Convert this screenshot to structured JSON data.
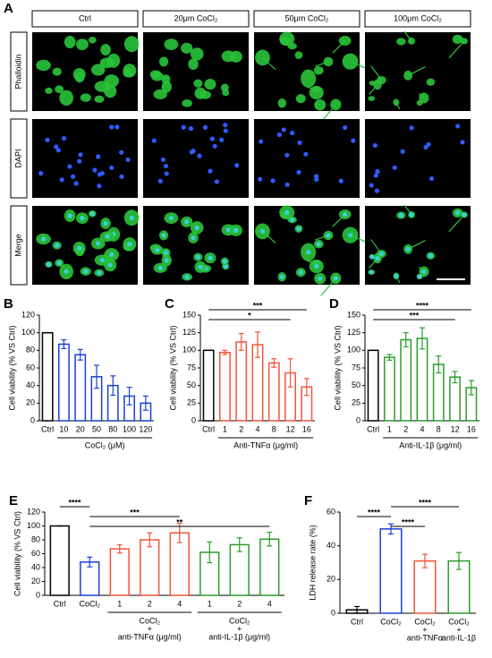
{
  "panel_a": {
    "label": "A",
    "columns": [
      "Ctrl",
      "20μm CoCl₂",
      "50μm CoCl₂",
      "100μm CoCl₂"
    ],
    "rows": [
      "Phalloidin",
      "DAPI",
      "Merge"
    ]
  },
  "chart_data": [
    {
      "type": "bar",
      "panel": "B",
      "ylabel": "Cell viability (% VS Ctrl)",
      "xlabel": "CoCl₂ (μM)",
      "categories": [
        "Ctrl",
        "10",
        "20",
        "50",
        "80",
        "100",
        "120"
      ],
      "values": [
        100,
        87,
        75,
        50,
        40,
        28,
        20
      ],
      "errors": [
        0,
        5,
        6,
        13,
        11,
        10,
        8
      ],
      "colors": [
        "#000000",
        "#1a3fd8",
        "#1a3fd8",
        "#1a3fd8",
        "#1a3fd8",
        "#1a3fd8",
        "#1a3fd8"
      ],
      "ylim": [
        0,
        120
      ],
      "yticks": [
        0,
        20,
        40,
        60,
        80,
        100,
        120
      ]
    },
    {
      "type": "bar",
      "panel": "C",
      "ylabel": "Cell viability (% VS Ctrl)",
      "xlabel": "Anti-TNFα (μg/ml)",
      "categories": [
        "Ctrl",
        "1",
        "2",
        "4",
        "8",
        "12",
        "16"
      ],
      "values": [
        100,
        97,
        112,
        108,
        82,
        68,
        48
      ],
      "errors": [
        0,
        3,
        12,
        18,
        6,
        20,
        12
      ],
      "colors": [
        "#000000",
        "#f0553a",
        "#f0553a",
        "#f0553a",
        "#f0553a",
        "#f0553a",
        "#f0553a"
      ],
      "ylim": [
        0,
        150
      ],
      "yticks": [
        0,
        25,
        50,
        75,
        100,
        125,
        150
      ],
      "significance": [
        {
          "label": "***",
          "from": 0,
          "to": 6
        },
        {
          "label": "*",
          "from": 0,
          "to": 5
        }
      ]
    },
    {
      "type": "bar",
      "panel": "D",
      "ylabel": "Cell viability (% VS Ctrl)",
      "xlabel": "Anti-IL-1β (μg/ml)",
      "categories": [
        "Ctrl",
        "1",
        "2",
        "4",
        "8",
        "12",
        "16"
      ],
      "values": [
        100,
        90,
        115,
        117,
        80,
        62,
        47
      ],
      "errors": [
        0,
        4,
        10,
        15,
        12,
        8,
        10
      ],
      "colors": [
        "#000000",
        "#2a9d2a",
        "#2a9d2a",
        "#2a9d2a",
        "#2a9d2a",
        "#2a9d2a",
        "#2a9d2a"
      ],
      "ylim": [
        0,
        150
      ],
      "yticks": [
        0,
        25,
        50,
        75,
        100,
        125,
        150
      ],
      "significance": [
        {
          "label": "****",
          "from": 0,
          "to": 6
        },
        {
          "label": "***",
          "from": 0,
          "to": 5
        }
      ]
    },
    {
      "type": "bar",
      "panel": "E",
      "ylabel": "Cell viability (% VS Ctrl)",
      "categories": [
        "Ctrl",
        "CoCl₂",
        "1",
        "2",
        "4",
        "1",
        "2",
        "4"
      ],
      "values": [
        100,
        48,
        67,
        80,
        90,
        62,
        73,
        81
      ],
      "errors": [
        0,
        7,
        6,
        10,
        14,
        15,
        10,
        10
      ],
      "colors": [
        "#000000",
        "#1a3fd8",
        "#f0553a",
        "#f0553a",
        "#f0553a",
        "#2a9d2a",
        "#2a9d2a",
        "#2a9d2a"
      ],
      "ylim": [
        0,
        120
      ],
      "yticks": [
        0,
        20,
        40,
        60,
        80,
        100,
        120
      ],
      "groups": [
        {
          "label_lines": [
            "CoCl₂",
            "+",
            "anti-TNFα (μg/ml)"
          ],
          "from": 2,
          "to": 4
        },
        {
          "label_lines": [
            "CoCl₂",
            "+",
            "anti-IL-1β (μg/ml)"
          ],
          "from": 5,
          "to": 7
        }
      ],
      "significance": [
        {
          "label": "****",
          "from": 0,
          "to": 1
        },
        {
          "label": "***",
          "from": 1,
          "to": 4
        },
        {
          "label": "**",
          "from": 1,
          "to": 7
        }
      ]
    },
    {
      "type": "bar",
      "panel": "F",
      "ylabel": "LDH release rate (%)",
      "categories": [
        [
          "Ctrl"
        ],
        [
          "CoCl₂"
        ],
        [
          "CoCl₂",
          "+",
          "anti-TNFα"
        ],
        [
          "CoCl₂",
          "+",
          "anti-IL-1β"
        ]
      ],
      "values": [
        2,
        50,
        31,
        31
      ],
      "errors": [
        2,
        3,
        4,
        5
      ],
      "colors": [
        "#000000",
        "#1a3fd8",
        "#f0553a",
        "#2a9d2a"
      ],
      "ylim": [
        0,
        60
      ],
      "yticks": [
        0,
        20,
        40,
        60
      ],
      "significance": [
        {
          "label": "****",
          "from": 1,
          "to": 3
        },
        {
          "label": "****",
          "from": 0,
          "to": 1
        },
        {
          "label": "****",
          "from": 1,
          "to": 2
        }
      ]
    }
  ]
}
